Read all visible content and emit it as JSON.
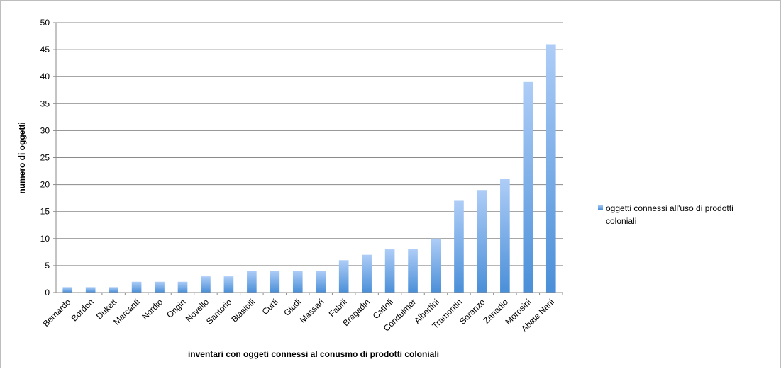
{
  "chart_data": {
    "type": "bar",
    "categories": [
      "Bernardo",
      "Bordon",
      "Dukett",
      "Marcanti",
      "Nordio",
      "Ongin",
      "Novello",
      "Santorio",
      "Biasiolli",
      "Curti",
      "Giudi",
      "Massari",
      "Fabrii",
      "Bragadin",
      "Cattoli",
      "Condulmer",
      "Albertini",
      "Tramontin",
      "Soranzo",
      "Zanadio",
      "Morosini",
      "Abate Nani"
    ],
    "series": [
      {
        "name": "oggetti connessi all'uso di prodotti coloniali",
        "values": [
          1,
          1,
          1,
          2,
          2,
          2,
          3,
          3,
          4,
          4,
          4,
          4,
          6,
          7,
          8,
          8,
          10,
          17,
          19,
          21,
          39,
          46
        ]
      }
    ],
    "xlabel": "inventari con oggeti connessi al conusmo di prodotti coloniali",
    "ylabel": "numero di oggetti",
    "ylim": [
      0,
      50
    ],
    "yticks": [
      0,
      5,
      10,
      15,
      20,
      25,
      30,
      35,
      40,
      45,
      50
    ],
    "grid": true,
    "legend_position": "right",
    "legend_lines": [
      "oggetti connessi all'uso di prodotti",
      "coloniali"
    ],
    "colors": {
      "bar_top": "#aecdf7",
      "bar_bottom": "#4a8fd8",
      "grid": "#8a8a8a",
      "axis": "#8a8a8a"
    }
  }
}
